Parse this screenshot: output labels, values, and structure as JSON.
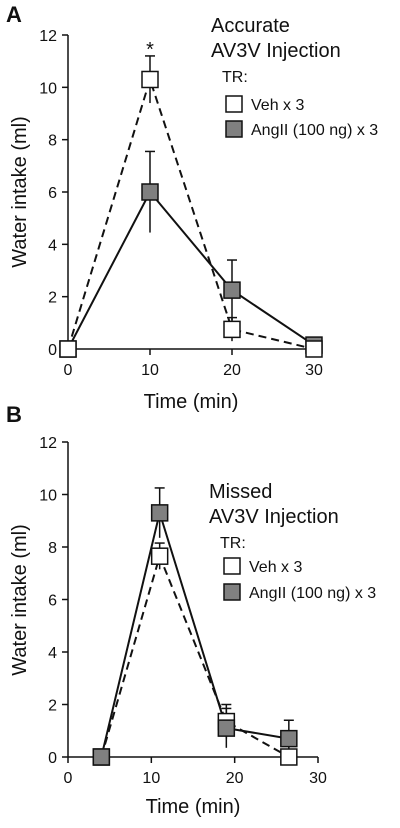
{
  "colors": {
    "veh_fill": "#ffffff",
    "angii_fill": "#808080",
    "line": "#111111"
  },
  "chart_data": [
    {
      "panel": "A",
      "type": "line",
      "xlabel": "Time (min)",
      "ylabel": "Water intake (ml)",
      "xlim": [
        0,
        30
      ],
      "ylim": [
        0,
        12
      ],
      "xticks": [
        0,
        10,
        20,
        30
      ],
      "yticks": [
        0,
        2,
        4,
        6,
        8,
        10,
        12
      ],
      "legend": {
        "title_line1": "Accurate",
        "title_line2": "AV3V Injection",
        "subtitle": "TR:",
        "placement": "top-right"
      },
      "annotation": {
        "text": "*",
        "x": 10,
        "y": 11.5
      },
      "series": [
        {
          "name": "Veh x 3",
          "marker": "open-square",
          "line_style": "dashed",
          "x": [
            0,
            10,
            20,
            30
          ],
          "y": [
            0,
            10.3,
            0.75,
            0.0
          ],
          "err": [
            0,
            0.9,
            0.45,
            0
          ]
        },
        {
          "name": "AngII (100 ng) x 3",
          "marker": "filled-square",
          "line_style": "solid",
          "x": [
            0,
            10,
            20,
            30
          ],
          "y": [
            0,
            6.0,
            2.25,
            0.15
          ],
          "err": [
            0,
            1.55,
            1.15,
            0
          ]
        }
      ]
    },
    {
      "panel": "B",
      "type": "line",
      "xlabel": "Time (min)",
      "ylabel": "Water intake (ml)",
      "xlim": [
        0,
        30
      ],
      "ylim": [
        0,
        12
      ],
      "xticks": [
        0,
        10,
        20,
        30
      ],
      "yticks": [
        0,
        2,
        4,
        6,
        8,
        10,
        12
      ],
      "legend": {
        "title_line1": "Missed",
        "title_line2": "AV3V Injection",
        "subtitle": "TR:",
        "placement": "top-right"
      },
      "series": [
        {
          "name": "Veh x 3",
          "marker": "open-square",
          "line_style": "dashed",
          "x": [
            4,
            11,
            19,
            26.5
          ],
          "y": [
            0,
            7.65,
            1.35,
            0.0
          ],
          "err": [
            0,
            0.5,
            0.65,
            0
          ]
        },
        {
          "name": "AngII (100 ng) x 3",
          "marker": "filled-square",
          "line_style": "solid",
          "x": [
            4,
            11,
            19,
            26.5
          ],
          "y": [
            0,
            9.3,
            1.1,
            0.7
          ],
          "err": [
            0,
            0.95,
            0.75,
            0.7
          ]
        }
      ]
    }
  ]
}
